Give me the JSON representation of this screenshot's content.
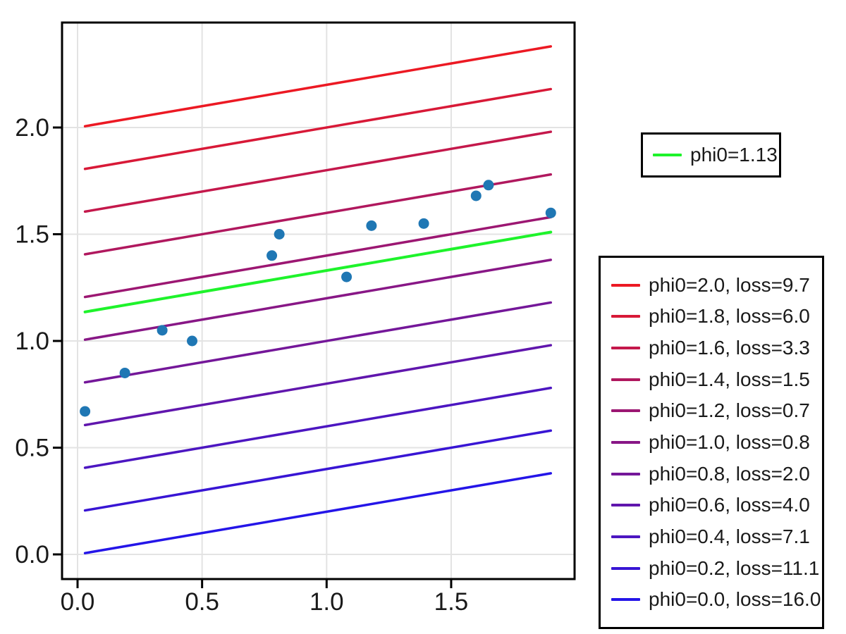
{
  "chart_data": {
    "type": "line+scatter",
    "title": "",
    "xlabel": "",
    "ylabel": "",
    "grid": true,
    "xlim": [
      -0.06,
      2.0
    ],
    "ylim": [
      -0.12,
      2.49
    ],
    "x_ticks": {
      "values": [
        0.0,
        0.5,
        1.0,
        1.5
      ],
      "labels": [
        "0.0",
        "0.5",
        "1.0",
        "1.5"
      ]
    },
    "y_ticks": {
      "values": [
        0.0,
        0.5,
        1.0,
        1.5,
        2.0
      ],
      "labels": [
        "0.0",
        "0.5",
        "1.0",
        "1.5",
        "2.0"
      ]
    },
    "line_model": {
      "slope": 0.2,
      "x_start": 0.03,
      "x_end": 1.9
    },
    "series": [
      {
        "phi0": 2.0,
        "loss": 9.7,
        "label": "phi0=2.0, loss=9.7",
        "color": "#ec1923"
      },
      {
        "phi0": 1.8,
        "loss": 6.0,
        "label": "phi0=1.8, loss=6.0",
        "color": "#d81937"
      },
      {
        "phi0": 1.6,
        "loss": 3.3,
        "label": "phi0=1.6, loss=3.3",
        "color": "#c4184b"
      },
      {
        "phi0": 1.4,
        "loss": 1.5,
        "label": "phi0=1.4, loss=1.5",
        "color": "#b0185e"
      },
      {
        "phi0": 1.2,
        "loss": 0.7,
        "label": "phi0=1.2, loss=0.7",
        "color": "#9c1772"
      },
      {
        "phi0": 1.0,
        "loss": 0.8,
        "label": "phi0=1.0, loss=0.8",
        "color": "#881786"
      },
      {
        "phi0": 0.8,
        "loss": 2.0,
        "label": "phi0=0.8, loss=2.0",
        "color": "#741799"
      },
      {
        "phi0": 0.6,
        "loss": 4.0,
        "label": "phi0=0.6, loss=4.0",
        "color": "#6016ad"
      },
      {
        "phi0": 0.4,
        "loss": 7.1,
        "label": "phi0=0.4, loss=7.1",
        "color": "#4c16c1"
      },
      {
        "phi0": 0.2,
        "loss": 11.1,
        "label": "phi0=0.2, loss=11.1",
        "color": "#3815d4"
      },
      {
        "phi0": 0.0,
        "loss": 16.0,
        "label": "phi0=0.0, loss=16.0",
        "color": "#2415e8"
      }
    ],
    "fit": {
      "phi0": 1.13,
      "label": "phi0=1.13",
      "color": "#1ef32b"
    },
    "scatter": {
      "color": "#1f77b4",
      "points": [
        [
          0.03,
          0.67
        ],
        [
          0.19,
          0.85
        ],
        [
          0.34,
          1.05
        ],
        [
          0.46,
          1.0
        ],
        [
          0.78,
          1.4
        ],
        [
          0.81,
          1.5
        ],
        [
          1.08,
          1.3
        ],
        [
          1.18,
          1.54
        ],
        [
          1.39,
          1.55
        ],
        [
          1.6,
          1.68
        ],
        [
          1.65,
          1.73
        ],
        [
          1.9,
          1.6
        ]
      ]
    },
    "legend_fit_position": "top-right",
    "legend_series_position": "right"
  },
  "style": {
    "grid_color": "#e3e3e3",
    "axis_color": "#000000",
    "tick_label_color": "#1a1a1a"
  }
}
